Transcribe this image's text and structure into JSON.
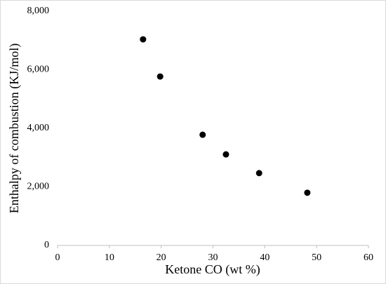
{
  "chart_data": {
    "type": "scatter",
    "x_label": "Ketone CO (wt %)",
    "y_label": "Enthalpy of combustion (KJ/mol)",
    "series": [
      {
        "color": "#000000",
        "x": [
          16.5,
          19.8,
          28.0,
          32.5,
          38.9,
          48.2
        ],
        "values": [
          7040,
          5770,
          3780,
          3110,
          2470,
          1800
        ]
      }
    ],
    "xlim": [
      0,
      60
    ],
    "xticks": [
      0,
      10,
      20,
      30,
      40,
      50,
      60
    ],
    "ylim": [
      0,
      8000
    ],
    "yticks": [
      0,
      {
        "value": 2000,
        "label": "2,000"
      },
      {
        "value": 4000,
        "label": "4,000"
      },
      {
        "value": 6000,
        "label": "6,000"
      },
      {
        "value": 8000,
        "label": "8,000"
      }
    ],
    "grid": false
  }
}
